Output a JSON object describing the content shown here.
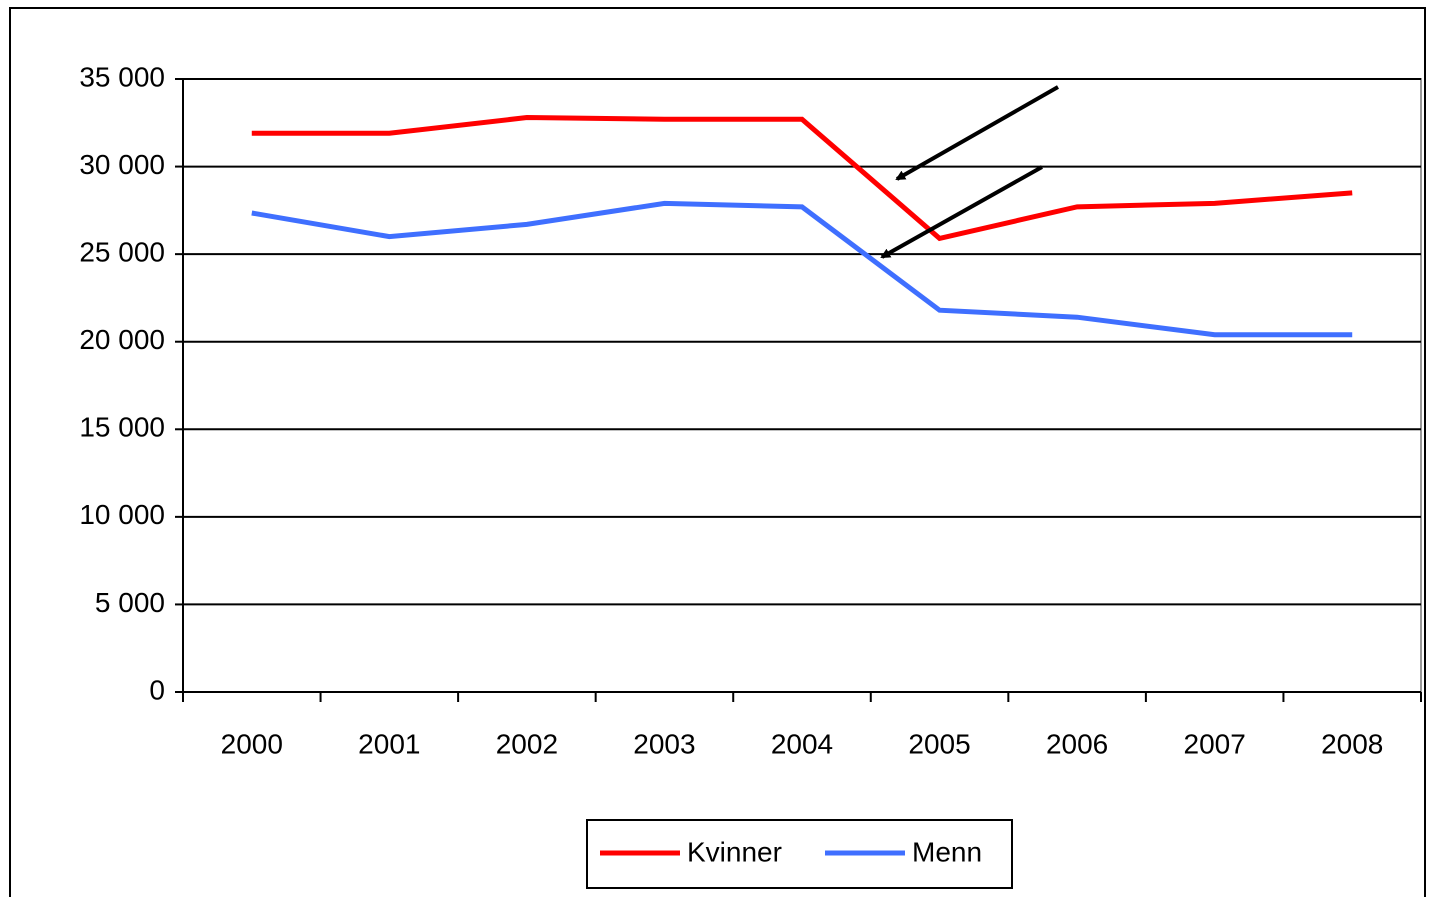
{
  "chart_data": {
    "type": "line",
    "categories": [
      "2000",
      "2001",
      "2002",
      "2003",
      "2004",
      "2005",
      "2006",
      "2007",
      "2008"
    ],
    "series": [
      {
        "name": "Kvinner",
        "color": "#ff0000",
        "values": [
          31900,
          31900,
          32800,
          32700,
          32700,
          25900,
          27700,
          27900,
          28500
        ]
      },
      {
        "name": "Menn",
        "color": "#3f6fff",
        "values": [
          27350,
          26000,
          26700,
          27900,
          27700,
          21800,
          21400,
          20400,
          20400
        ]
      }
    ],
    "ylim": [
      0,
      35000
    ],
    "yticks": [
      {
        "value": 0,
        "label": "0"
      },
      {
        "value": 5000,
        "label": "5 000"
      },
      {
        "value": 10000,
        "label": "10 000"
      },
      {
        "value": 15000,
        "label": "15 000"
      },
      {
        "value": 20000,
        "label": "20 000"
      },
      {
        "value": 25000,
        "label": "25 000"
      },
      {
        "value": 30000,
        "label": "30 000"
      },
      {
        "value": 35000,
        "label": "35 000"
      }
    ],
    "grid": true,
    "legend": "bottom"
  }
}
